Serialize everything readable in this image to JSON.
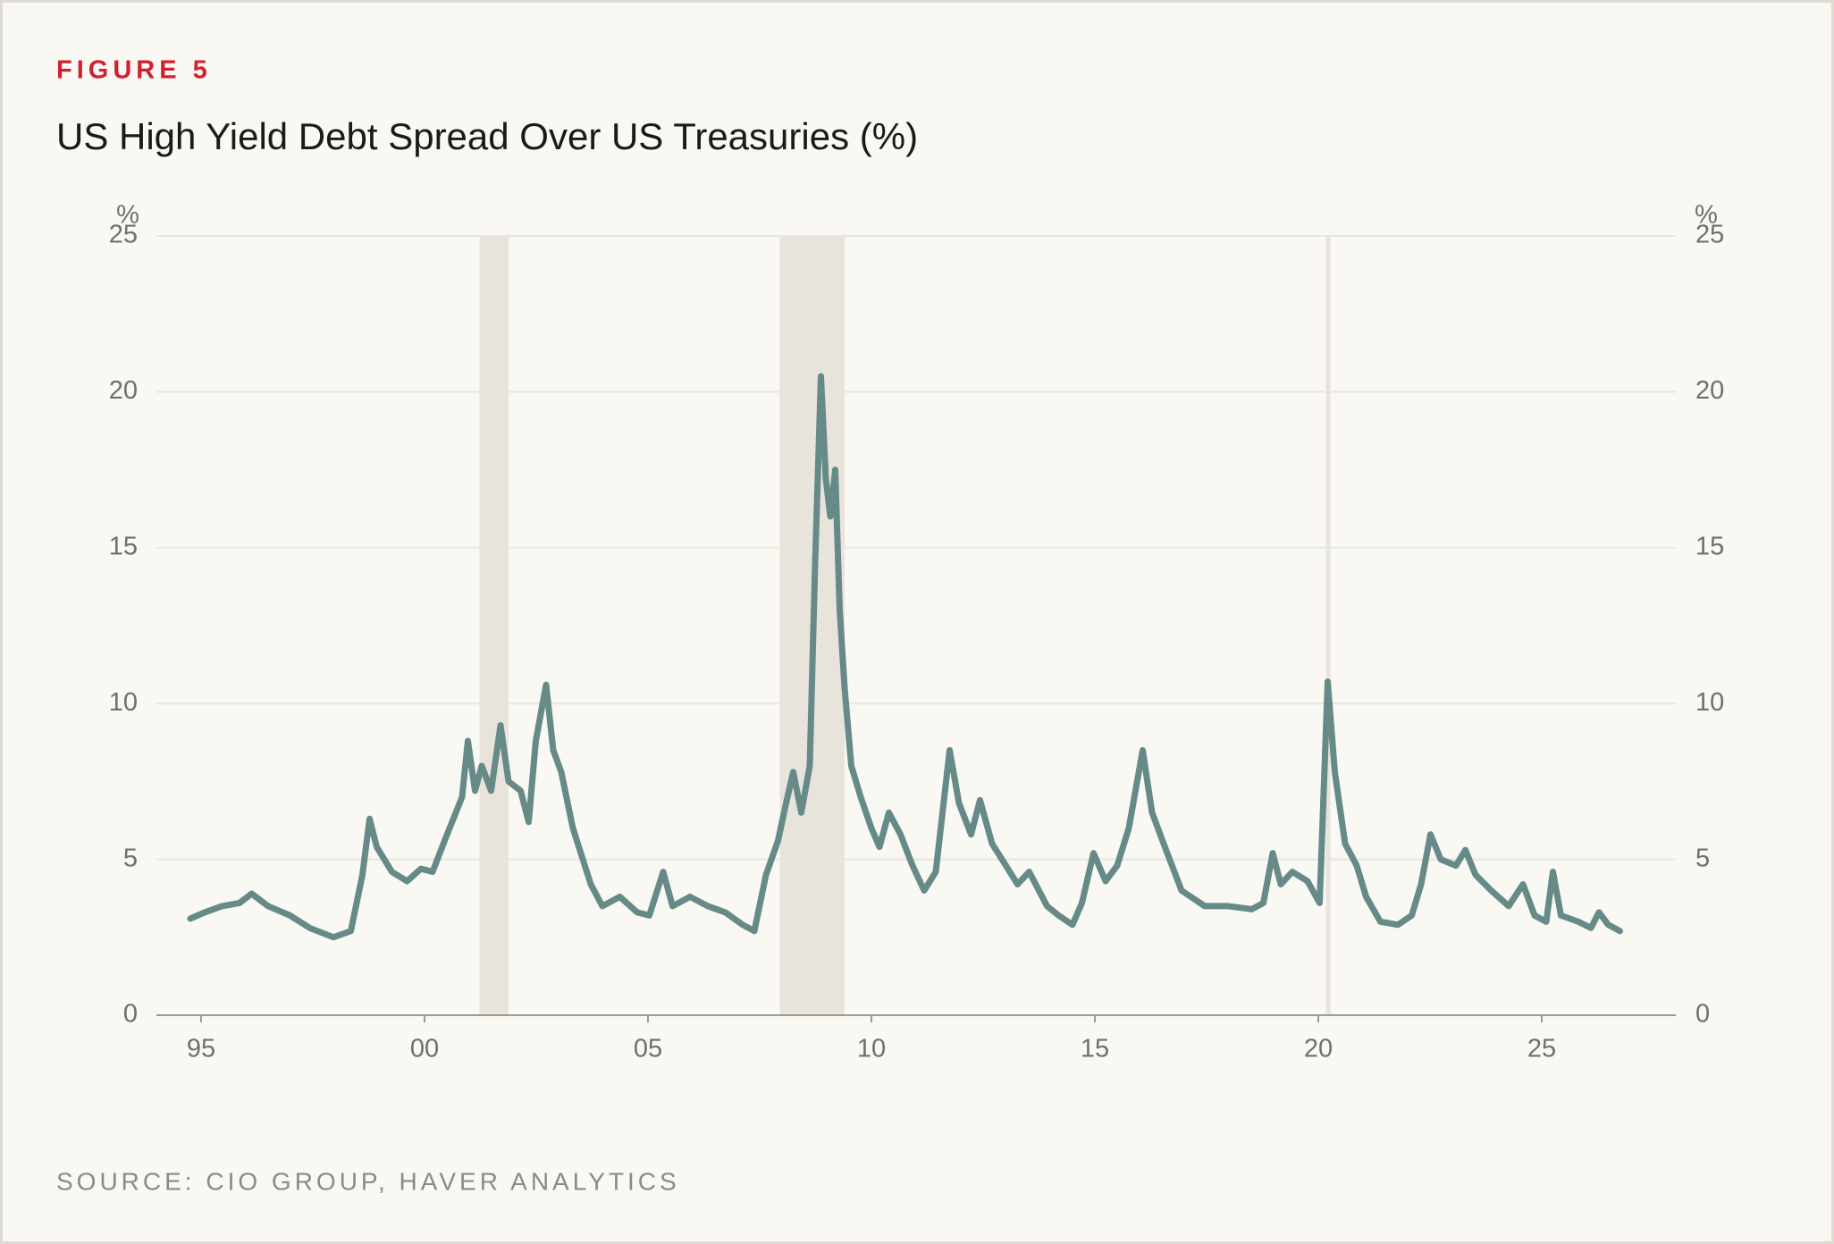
{
  "chart_data": {
    "type": "line",
    "figure_label": "FIGURE 5",
    "title": "US High Yield Debt Spread Over US Treasuries (%)",
    "source": "SOURCE: CIO GROUP, HAVER ANALYTICS",
    "y_unit": "%",
    "color": "#658a88",
    "shade_color": "#e8e4db",
    "shaded_periods": [
      [
        2001.23,
        2001.88
      ],
      [
        2007.95,
        2009.4
      ],
      [
        2020.17,
        2020.27
      ]
    ],
    "x": [
      1994.76,
      1995.08,
      1995.47,
      1995.86,
      1996.13,
      1996.5,
      1996.99,
      1997.43,
      1997.96,
      1998.35,
      1998.61,
      1998.77,
      1998.93,
      1999.27,
      1999.61,
      1999.92,
      2000.18,
      2000.45,
      2000.84,
      2000.97,
      2001.13,
      2001.28,
      2001.49,
      2001.7,
      2001.88,
      2002.15,
      2002.33,
      2002.49,
      2002.72,
      2002.88,
      2003.06,
      2003.32,
      2003.72,
      2003.98,
      2004.37,
      2004.76,
      2005.03,
      2005.34,
      2005.55,
      2005.94,
      2006.34,
      2006.73,
      2007.12,
      2007.38,
      2007.64,
      2007.91,
      2008.09,
      2008.25,
      2008.43,
      2008.62,
      2008.74,
      2008.87,
      2008.98,
      2009.08,
      2009.19,
      2009.29,
      2009.4,
      2009.55,
      2009.76,
      2010.0,
      2010.18,
      2010.39,
      2010.65,
      2010.92,
      2011.18,
      2011.44,
      2011.75,
      2011.96,
      2012.23,
      2012.43,
      2012.7,
      2013.01,
      2013.27,
      2013.53,
      2013.93,
      2014.19,
      2014.5,
      2014.71,
      2014.97,
      2015.24,
      2015.5,
      2015.76,
      2016.07,
      2016.28,
      2016.54,
      2016.94,
      2017.46,
      2017.98,
      2018.51,
      2018.77,
      2018.98,
      2019.16,
      2019.42,
      2019.76,
      2020.03,
      2020.21,
      2020.37,
      2020.6,
      2020.86,
      2021.07,
      2021.39,
      2021.78,
      2022.09,
      2022.3,
      2022.51,
      2022.74,
      2023.08,
      2023.29,
      2023.52,
      2023.87,
      2024.26,
      2024.58,
      2024.84,
      2025.1,
      2025.25,
      2025.43,
      2025.82,
      2026.1,
      2026.28,
      2026.49,
      2026.75
    ],
    "values": [
      3.1,
      3.3,
      3.5,
      3.6,
      3.9,
      3.5,
      3.2,
      2.8,
      2.5,
      2.7,
      4.5,
      6.3,
      5.4,
      4.6,
      4.3,
      4.7,
      4.6,
      5.6,
      7.0,
      8.8,
      7.2,
      8.0,
      7.2,
      9.3,
      7.5,
      7.2,
      6.2,
      8.8,
      10.6,
      8.5,
      7.8,
      6.0,
      4.2,
      3.5,
      3.8,
      3.3,
      3.2,
      4.6,
      3.5,
      3.8,
      3.5,
      3.3,
      2.9,
      2.7,
      4.5,
      5.6,
      6.8,
      7.8,
      6.5,
      8.0,
      14.5,
      20.5,
      17.2,
      16.0,
      17.5,
      13.0,
      10.5,
      8.0,
      7.0,
      6.0,
      5.4,
      6.5,
      5.8,
      4.8,
      4.0,
      4.6,
      8.5,
      6.8,
      5.8,
      6.9,
      5.5,
      4.8,
      4.2,
      4.6,
      3.5,
      3.2,
      2.9,
      3.6,
      5.2,
      4.3,
      4.8,
      6.0,
      8.5,
      6.5,
      5.5,
      4.0,
      3.5,
      3.5,
      3.4,
      3.6,
      5.2,
      4.2,
      4.6,
      4.3,
      3.6,
      10.7,
      7.8,
      5.5,
      4.8,
      3.8,
      3.0,
      2.9,
      3.2,
      4.2,
      5.8,
      5.0,
      4.8,
      5.3,
      4.5,
      4.0,
      3.5,
      4.2,
      3.2,
      3.0,
      4.6,
      3.2,
      3.0,
      2.8,
      3.3,
      2.9,
      2.7
    ],
    "xlim": [
      1994.0,
      2028.0
    ],
    "xticks": [
      {
        "value": 1995,
        "label": "95"
      },
      {
        "value": 2000,
        "label": "00"
      },
      {
        "value": 2005,
        "label": "05"
      },
      {
        "value": 2010,
        "label": "10"
      },
      {
        "value": 2015,
        "label": "15"
      },
      {
        "value": 2020,
        "label": "20"
      },
      {
        "value": 2025,
        "label": "25"
      }
    ],
    "ylim": [
      0,
      25
    ],
    "yticks": [
      0,
      5,
      10,
      15,
      20,
      25
    ],
    "y2lim": [
      0,
      25
    ],
    "y2ticks": [
      0,
      5,
      10,
      15,
      20,
      25
    ],
    "grid": true
  }
}
